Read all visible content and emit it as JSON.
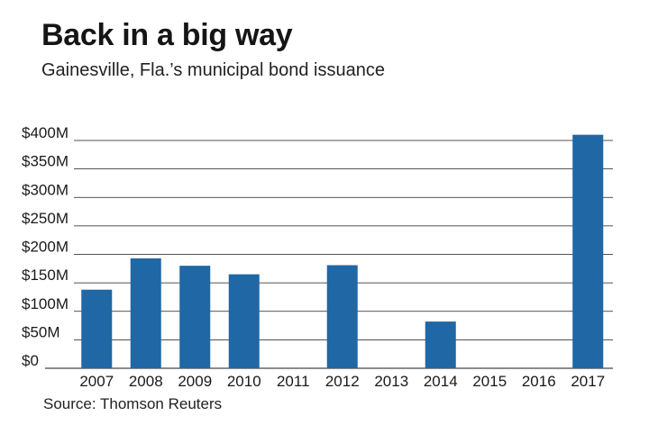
{
  "header": {
    "title": "Back in a big way",
    "subtitle": "Gainesville, Fla.’s municipal bond issuance"
  },
  "footer": {
    "source": "Source: Thomson Reuters"
  },
  "colors": {
    "bar": "#1f67a5",
    "gridline": "#1a1a1a",
    "text": "#1a1a1a"
  },
  "chart_data": {
    "type": "bar",
    "title": "Back in a big way",
    "subtitle": "Gainesville, Fla.’s municipal bond issuance",
    "xlabel": "",
    "ylabel": "",
    "unit": "$M",
    "categories": [
      "2007",
      "2008",
      "2009",
      "2010",
      "2011",
      "2012",
      "2013",
      "2014",
      "2015",
      "2016",
      "2017"
    ],
    "values": [
      138,
      193,
      180,
      165,
      0,
      181,
      0,
      82,
      0,
      0,
      410
    ],
    "ylim": [
      0,
      400
    ],
    "yticks": [
      0,
      50,
      100,
      150,
      200,
      250,
      300,
      350,
      400
    ],
    "ytick_labels": [
      "$0",
      "$50M",
      "$100M",
      "$150M",
      "$200M",
      "$250M",
      "$300M",
      "$350M",
      "$400M"
    ],
    "grid": true,
    "legend": "none",
    "source": "Source: Thomson Reuters"
  }
}
